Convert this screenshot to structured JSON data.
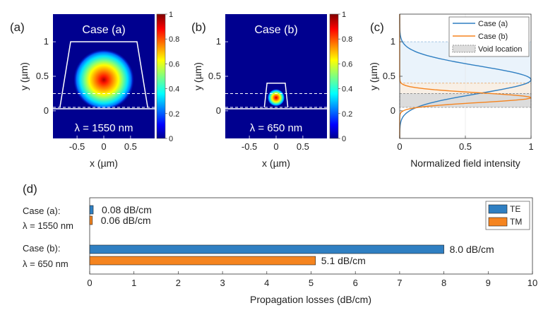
{
  "chart_data": [
    {
      "type": "heatmap",
      "panel_label": "(a)",
      "title": "Case (a)",
      "annotation": "λ = 1550 nm",
      "xlabel": "x (µm)",
      "ylabel": "y (µm)",
      "xticks": [
        "-0.5",
        "0",
        "0.5"
      ],
      "yticks": [
        "0",
        "0.5",
        "1"
      ],
      "xlim": [
        -0.95,
        0.95
      ],
      "ylim": [
        -0.4,
        1.4
      ],
      "mode_center": [
        0,
        0.45
      ],
      "mode_radius": 0.42,
      "core_outline": [
        [
          -0.82,
          0.05
        ],
        [
          -0.62,
          1.0
        ],
        [
          0.62,
          1.0
        ],
        [
          0.82,
          0.05
        ]
      ],
      "void_lines_y": [
        0.05,
        0.25
      ],
      "colorbar_ticks": [
        "0",
        "0.2",
        "0.4",
        "0.6",
        "0.8",
        "1"
      ]
    },
    {
      "type": "heatmap",
      "panel_label": "(b)",
      "title": "Case (b)",
      "annotation": "λ = 650 nm",
      "xlabel": "x (µm)",
      "ylabel": "y (µm)",
      "xticks": [
        "-0.5",
        "0",
        "0.5"
      ],
      "yticks": [
        "0",
        "0.5",
        "1"
      ],
      "xlim": [
        -0.95,
        0.95
      ],
      "ylim": [
        -0.4,
        1.4
      ],
      "mode_center": [
        0,
        0.19
      ],
      "mode_radius": 0.12,
      "core_outline": [
        [
          -0.22,
          0.05
        ],
        [
          -0.17,
          0.4
        ],
        [
          0.17,
          0.4
        ],
        [
          0.22,
          0.05
        ]
      ],
      "void_lines_y": [
        0.05,
        0.25
      ],
      "colorbar_ticks": [
        "0",
        "0.2",
        "0.4",
        "0.6",
        "0.8",
        "1"
      ]
    },
    {
      "type": "line",
      "panel_label": "(c)",
      "xlabel": "Normalized field intensity",
      "ylabel": "y (µm)",
      "xticks": [
        "0",
        "0.5",
        "1"
      ],
      "yticks": [
        "0",
        "0.5",
        "1"
      ],
      "xlim": [
        0,
        1
      ],
      "ylim": [
        -0.4,
        1.4
      ],
      "legend": [
        "Case (a)",
        "Case (b)",
        "Void location"
      ],
      "series": [
        {
          "name": "Case (a)",
          "color": "#2f7fc2",
          "peak_y": 0.45,
          "width": 0.28
        },
        {
          "name": "Case (b)",
          "color": "#f5841f",
          "peak_y": 0.19,
          "width": 0.1
        }
      ],
      "void_band": [
        0.05,
        0.25
      ],
      "core_a_band": [
        0.05,
        1.0
      ],
      "core_b_band": [
        0.05,
        0.4
      ]
    },
    {
      "type": "bar",
      "orientation": "horizontal",
      "panel_label": "(d)",
      "xlabel": "Propagation losses (dB/cm)",
      "xticks": [
        "0",
        "1",
        "2",
        "3",
        "4",
        "5",
        "6",
        "7",
        "8",
        "9",
        "10"
      ],
      "xlim": [
        0,
        10
      ],
      "groups": [
        {
          "label_line1": "Case (a):",
          "label_line2": "λ = 1550 nm",
          "TE": 0.08,
          "TM": 0.06,
          "TE_label": "0.08 dB/cm",
          "TM_label": "0.06 dB/cm"
        },
        {
          "label_line1": "Case (b):",
          "label_line2": "λ = 650 nm",
          "TE": 8.0,
          "TM": 5.1,
          "TE_label": "8.0 dB/cm",
          "TM_label": "5.1 dB/cm"
        }
      ],
      "legend": [
        "TE",
        "TM"
      ],
      "colors": {
        "TE": "#2f7fc2",
        "TM": "#f5841f"
      }
    }
  ]
}
